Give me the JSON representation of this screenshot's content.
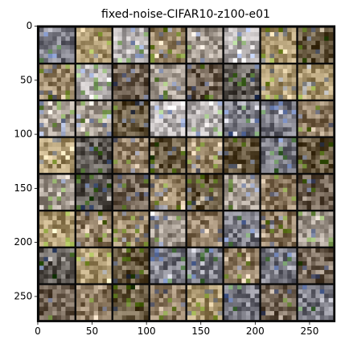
{
  "chart_data": {
    "type": "image",
    "title": "fixed-noise-CIFAR10-z100-e01",
    "xlim": [
      -0.5,
      273.5
    ],
    "ylim": [
      273.5,
      -0.5
    ],
    "xticks": [
      0,
      50,
      100,
      150,
      200,
      250
    ],
    "yticks": [
      0,
      50,
      100,
      150,
      200,
      250
    ]
  }
}
